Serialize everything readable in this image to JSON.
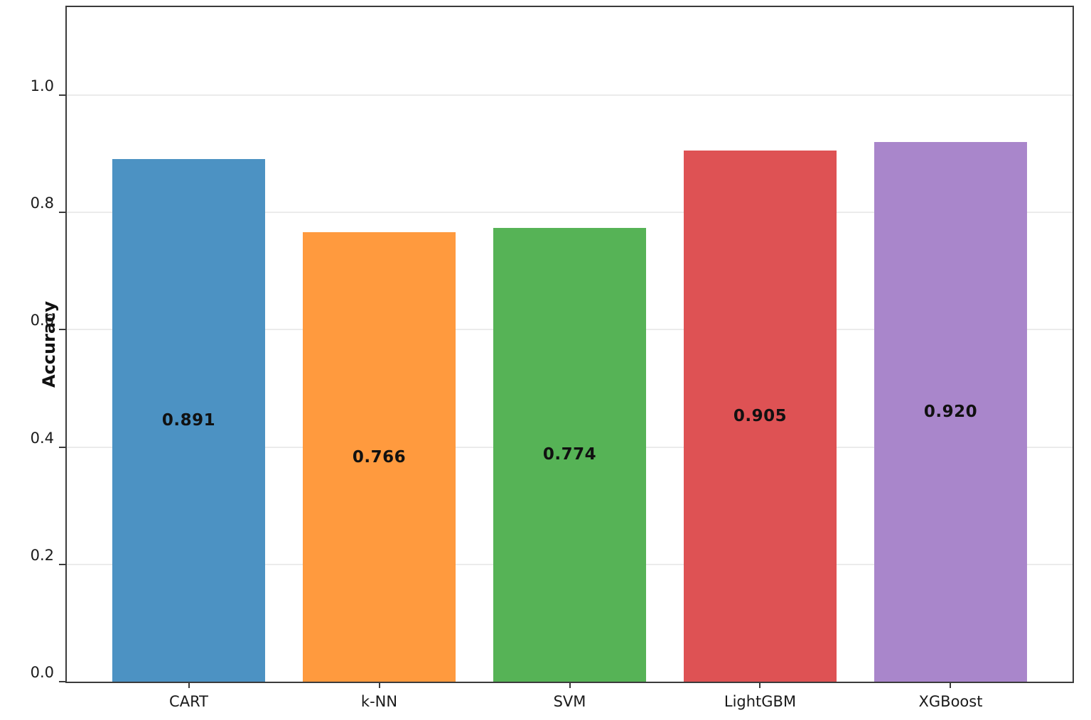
{
  "chart_data": {
    "type": "bar",
    "categories": [
      "CART",
      "k-NN",
      "SVM",
      "LightGBM",
      "XGBoost"
    ],
    "values": [
      0.891,
      0.766,
      0.774,
      0.905,
      0.92
    ],
    "value_labels": [
      "0.891",
      "0.766",
      "0.774",
      "0.905",
      "0.920"
    ],
    "title": "",
    "xlabel": "",
    "ylabel": "Accuracy",
    "ylim": [
      0,
      1.15
    ],
    "yticks": [
      0.0,
      0.2,
      0.4,
      0.6,
      0.8,
      1.0
    ],
    "ytick_labels": [
      "0.0",
      "0.2",
      "0.4",
      "0.6",
      "0.8",
      "1.0"
    ],
    "bar_colors": [
      "#4C92C3",
      "#FF9A3E",
      "#56B356",
      "#DE5254",
      "#A986CB"
    ],
    "grid": true,
    "legend_position": "none",
    "colors": {
      "spine": "#3b3b3b",
      "gridline": "#ebebeb",
      "tick_text": "#1a1a1a",
      "bar_label_text": "#111111",
      "background": "#ffffff"
    }
  }
}
